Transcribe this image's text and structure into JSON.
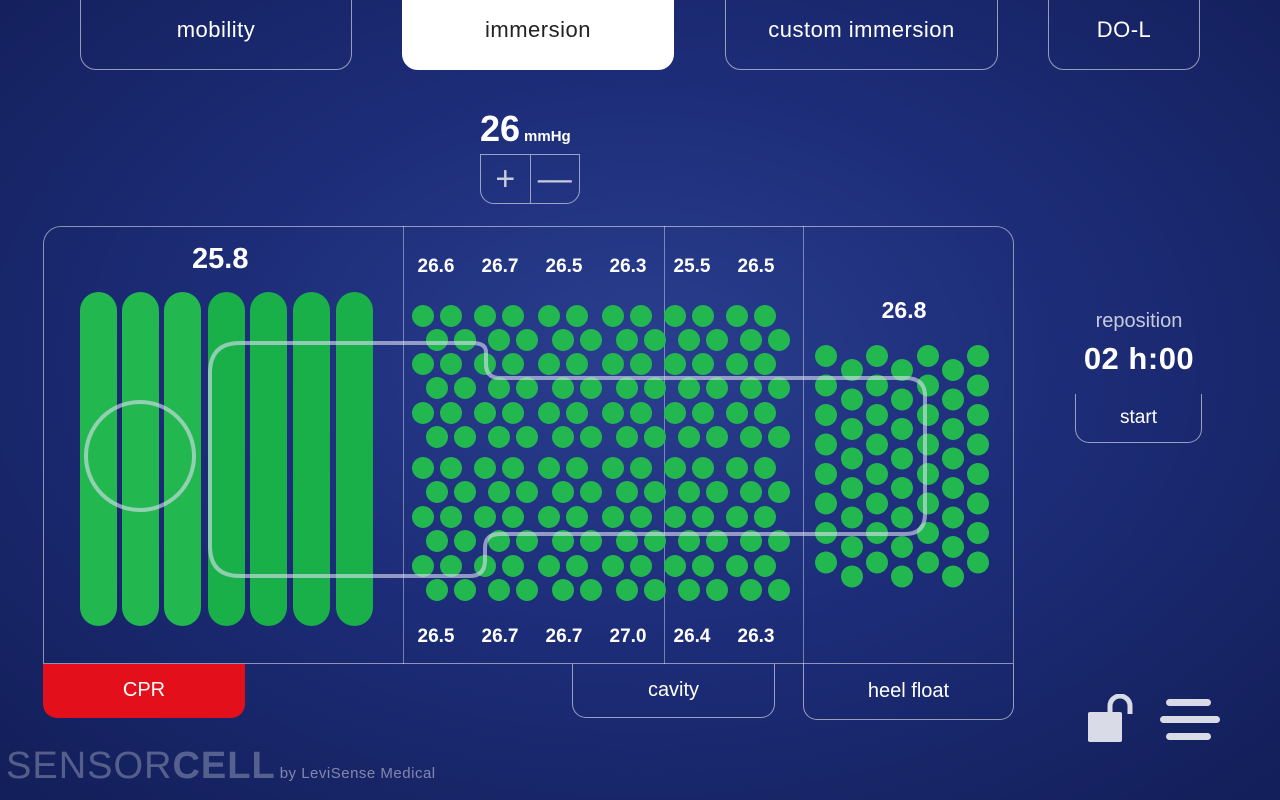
{
  "tabs": [
    {
      "label": "mobility",
      "active": false
    },
    {
      "label": "immersion",
      "active": true
    },
    {
      "label": "custom immersion",
      "active": false
    },
    {
      "label": "DO-L",
      "active": false
    }
  ],
  "pressure": {
    "value": "26",
    "unit": "mmHg",
    "increase_symbol": "+",
    "decrease_symbol": "—"
  },
  "zones": {
    "head": {
      "value": "25.8"
    },
    "top_values": [
      "26.6",
      "26.7",
      "26.5",
      "26.3",
      "25.5",
      "26.5"
    ],
    "bottom_values": [
      "26.5",
      "26.7",
      "26.7",
      "27.0",
      "26.4",
      "26.3"
    ],
    "heel": {
      "value": "26.8"
    }
  },
  "bottom_tabs": {
    "cpr": "CPR",
    "cavity": "cavity",
    "heel_float": "heel float"
  },
  "reposition": {
    "label": "reposition",
    "hours": "02",
    "h": "h",
    "sep": ":",
    "minutes": "00",
    "start_label": "start"
  },
  "brand": {
    "sensor": "SENSOR",
    "cell": "CELL",
    "by": "by LeviSense Medical"
  },
  "icons": {
    "lock": "unlock-icon",
    "menu": "hamburger-menu-icon"
  },
  "colors": {
    "cell_green": "#22b84f",
    "cell_green_dark": "#19b04a",
    "cpr_red": "#e3101b",
    "background": "#1d2d79"
  }
}
